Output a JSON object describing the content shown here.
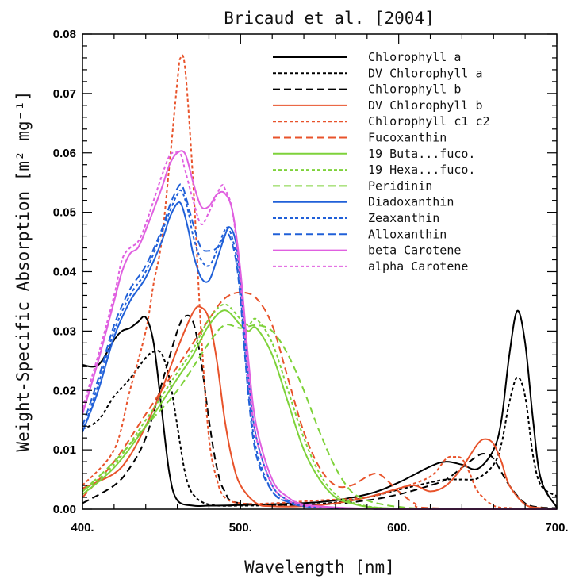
{
  "chart_data": {
    "type": "line",
    "title": "Bricaud et al. [2004]",
    "xlabel": "Wavelength [nm]",
    "ylabel": "Weight-Specific Absorption [m² mg⁻¹]",
    "xlim": [
      400,
      700
    ],
    "ylim": [
      0,
      0.08
    ],
    "x_ticks": [
      400,
      500,
      600,
      700
    ],
    "x_tick_labels": [
      "400.",
      "500.",
      "600.",
      "700."
    ],
    "y_ticks": [
      0,
      0.01,
      0.02,
      0.03,
      0.04,
      0.05,
      0.06,
      0.07,
      0.08
    ],
    "y_tick_labels": [
      "0.00",
      "0.01",
      "0.02",
      "0.03",
      "0.04",
      "0.05",
      "0.06",
      "0.07",
      "0.08"
    ],
    "legend_position": "top-right",
    "series": [
      {
        "name": "Chlorophyll a",
        "color": "#000000",
        "dash": "solid",
        "x": [
          400,
          410,
          420,
          425,
          430,
          435,
          440,
          445,
          450,
          455,
          460,
          470,
          480,
          500,
          550,
          580,
          600,
          620,
          630,
          640,
          650,
          660,
          665,
          670,
          675,
          680,
          685,
          690,
          700
        ],
        "y": [
          0.0243,
          0.0243,
          0.0285,
          0.03,
          0.0305,
          0.0315,
          0.0323,
          0.028,
          0.017,
          0.006,
          0.0015,
          0.0006,
          0.0006,
          0.0007,
          0.0012,
          0.0025,
          0.0045,
          0.0072,
          0.008,
          0.0075,
          0.0068,
          0.01,
          0.015,
          0.026,
          0.0334,
          0.028,
          0.015,
          0.005,
          0.0003
        ]
      },
      {
        "name": "DV Chlorophyll a",
        "color": "#000000",
        "dash": "short",
        "x": [
          400,
          410,
          420,
          430,
          440,
          445,
          450,
          455,
          460,
          465,
          470,
          480,
          500,
          550,
          580,
          600,
          620,
          630,
          640,
          650,
          660,
          665,
          670,
          675,
          680,
          685,
          690,
          700
        ],
        "y": [
          0.0135,
          0.015,
          0.019,
          0.022,
          0.0255,
          0.0265,
          0.0262,
          0.022,
          0.014,
          0.006,
          0.0025,
          0.0008,
          0.0006,
          0.0009,
          0.002,
          0.0033,
          0.0045,
          0.005,
          0.005,
          0.0052,
          0.0075,
          0.011,
          0.018,
          0.0222,
          0.019,
          0.009,
          0.004,
          0.0022
        ]
      },
      {
        "name": "Chlorophyll b",
        "color": "#000000",
        "dash": "long",
        "x": [
          400,
          420,
          430,
          440,
          450,
          460,
          465,
          470,
          475,
          480,
          485,
          490,
          500,
          550,
          580,
          600,
          620,
          630,
          640,
          650,
          655,
          660,
          670,
          680,
          690,
          700
        ],
        "y": [
          0.001,
          0.004,
          0.007,
          0.012,
          0.021,
          0.03,
          0.0325,
          0.0315,
          0.025,
          0.015,
          0.007,
          0.003,
          0.001,
          0.0008,
          0.0015,
          0.0025,
          0.004,
          0.005,
          0.007,
          0.009,
          0.0093,
          0.0085,
          0.004,
          0.001,
          0.0003,
          0.0002
        ]
      },
      {
        "name": "DV Chlorophyll b",
        "color": "#e8532b",
        "dash": "solid",
        "x": [
          400,
          420,
          430,
          440,
          450,
          460,
          470,
          475,
          480,
          485,
          490,
          495,
          500,
          510,
          520,
          540,
          560,
          580,
          600,
          610,
          620,
          630,
          640,
          650,
          655,
          660,
          665,
          670,
          680,
          690,
          700
        ],
        "y": [
          0.0035,
          0.006,
          0.009,
          0.014,
          0.02,
          0.027,
          0.0332,
          0.034,
          0.032,
          0.025,
          0.015,
          0.008,
          0.004,
          0.001,
          0.0005,
          0.0005,
          0.001,
          0.002,
          0.0035,
          0.004,
          0.003,
          0.004,
          0.007,
          0.011,
          0.0118,
          0.011,
          0.008,
          0.004,
          0.0008,
          0.0002,
          0.0001
        ]
      },
      {
        "name": "Chlorophyll c1 c2",
        "color": "#e8532b",
        "dash": "short",
        "x": [
          400,
          420,
          430,
          440,
          445,
          450,
          455,
          460,
          462,
          465,
          470,
          475,
          480,
          485,
          490,
          500,
          520,
          550,
          580,
          600,
          620,
          630,
          635,
          640,
          645,
          650,
          660,
          670,
          680,
          700
        ],
        "y": [
          0.004,
          0.01,
          0.02,
          0.03,
          0.038,
          0.045,
          0.058,
          0.072,
          0.076,
          0.074,
          0.055,
          0.03,
          0.012,
          0.005,
          0.002,
          0.001,
          0.001,
          0.0015,
          0.002,
          0.0035,
          0.0055,
          0.0085,
          0.0088,
          0.0085,
          0.006,
          0.003,
          0.0006,
          0.0002,
          0.0001,
          0.0
        ]
      },
      {
        "name": "Fucoxanthin",
        "color": "#e8532b",
        "dash": "long",
        "x": [
          400,
          420,
          440,
          460,
          480,
          490,
          500,
          510,
          520,
          530,
          540,
          550,
          560,
          570,
          580,
          585,
          590,
          600,
          610,
          620,
          700
        ],
        "y": [
          0.002,
          0.008,
          0.016,
          0.024,
          0.032,
          0.0355,
          0.0365,
          0.0355,
          0.031,
          0.022,
          0.013,
          0.007,
          0.004,
          0.004,
          0.0055,
          0.006,
          0.0055,
          0.003,
          0.001,
          0.0002,
          0.0
        ]
      },
      {
        "name": "19 Buta...fuco.",
        "color": "#7ed23a",
        "dash": "solid",
        "x": [
          400,
          420,
          440,
          460,
          470,
          480,
          490,
          500,
          505,
          510,
          520,
          530,
          540,
          550,
          560,
          570,
          580,
          590,
          600,
          620,
          700
        ],
        "y": [
          0.0025,
          0.007,
          0.014,
          0.022,
          0.026,
          0.031,
          0.0335,
          0.031,
          0.03,
          0.0305,
          0.026,
          0.018,
          0.01,
          0.005,
          0.002,
          0.001,
          0.0004,
          0.0002,
          0.0001,
          0.0,
          0.0
        ]
      },
      {
        "name": "19 Hexa...fuco.",
        "color": "#7ed23a",
        "dash": "short",
        "x": [
          400,
          420,
          440,
          460,
          470,
          480,
          490,
          500,
          505,
          510,
          520,
          530,
          540,
          550,
          560,
          570,
          580,
          590,
          600,
          620,
          700
        ],
        "y": [
          0.003,
          0.0075,
          0.015,
          0.023,
          0.027,
          0.032,
          0.0345,
          0.032,
          0.031,
          0.032,
          0.028,
          0.02,
          0.012,
          0.006,
          0.0025,
          0.0012,
          0.0005,
          0.0002,
          0.0001,
          0.0,
          0.0
        ]
      },
      {
        "name": "Peridinin",
        "color": "#7ed23a",
        "dash": "long",
        "x": [
          400,
          420,
          440,
          460,
          480,
          490,
          500,
          510,
          520,
          530,
          540,
          550,
          560,
          570,
          580,
          590,
          600,
          620,
          700
        ],
        "y": [
          0.003,
          0.008,
          0.014,
          0.02,
          0.028,
          0.031,
          0.0305,
          0.031,
          0.03,
          0.026,
          0.02,
          0.013,
          0.007,
          0.003,
          0.0015,
          0.0008,
          0.0004,
          0.0001,
          0.0
        ]
      },
      {
        "name": "Diadoxanthin",
        "color": "#2060d8",
        "dash": "solid",
        "x": [
          400,
          410,
          420,
          430,
          440,
          450,
          455,
          460,
          463,
          467,
          470,
          475,
          480,
          485,
          490,
          493,
          497,
          500,
          505,
          510,
          520,
          530,
          540,
          560,
          580,
          600,
          700
        ],
        "y": [
          0.013,
          0.02,
          0.029,
          0.035,
          0.039,
          0.045,
          0.049,
          0.0515,
          0.051,
          0.047,
          0.043,
          0.039,
          0.0385,
          0.042,
          0.046,
          0.0475,
          0.045,
          0.038,
          0.022,
          0.012,
          0.004,
          0.0015,
          0.0006,
          0.0002,
          0.0001,
          0.0,
          0.0
        ]
      },
      {
        "name": "Zeaxanthin",
        "color": "#2060d8",
        "dash": "short",
        "x": [
          400,
          410,
          420,
          430,
          440,
          450,
          455,
          460,
          463,
          467,
          470,
          475,
          480,
          485,
          490,
          493,
          497,
          500,
          505,
          510,
          520,
          530,
          540,
          560,
          580,
          600,
          700
        ],
        "y": [
          0.013,
          0.021,
          0.03,
          0.036,
          0.04,
          0.0465,
          0.05,
          0.053,
          0.0535,
          0.05,
          0.046,
          0.042,
          0.041,
          0.0435,
          0.047,
          0.047,
          0.043,
          0.036,
          0.02,
          0.01,
          0.003,
          0.0012,
          0.0005,
          0.0002,
          0.0001,
          0.0,
          0.0
        ]
      },
      {
        "name": "Alloxanthin",
        "color": "#2060d8",
        "dash": "long",
        "x": [
          400,
          410,
          420,
          430,
          440,
          450,
          455,
          460,
          463,
          467,
          470,
          475,
          480,
          485,
          490,
          493,
          497,
          500,
          505,
          510,
          520,
          530,
          540,
          560,
          580,
          600,
          700
        ],
        "y": [
          0.014,
          0.022,
          0.031,
          0.037,
          0.041,
          0.047,
          0.051,
          0.054,
          0.0545,
          0.051,
          0.048,
          0.044,
          0.0435,
          0.044,
          0.046,
          0.046,
          0.042,
          0.035,
          0.019,
          0.009,
          0.003,
          0.0012,
          0.0005,
          0.0002,
          0.0001,
          0.0,
          0.0
        ]
      },
      {
        "name": "beta Carotene",
        "color": "#e060e0",
        "dash": "solid",
        "x": [
          400,
          410,
          420,
          425,
          430,
          435,
          440,
          450,
          455,
          460,
          465,
          470,
          475,
          480,
          485,
          490,
          495,
          500,
          505,
          510,
          520,
          530,
          540,
          560,
          580,
          600,
          700
        ],
        "y": [
          0.016,
          0.025,
          0.035,
          0.04,
          0.043,
          0.044,
          0.047,
          0.054,
          0.058,
          0.06,
          0.0598,
          0.055,
          0.051,
          0.051,
          0.053,
          0.0532,
          0.05,
          0.04,
          0.025,
          0.014,
          0.005,
          0.002,
          0.0008,
          0.0003,
          0.0001,
          0.0,
          0.0
        ]
      },
      {
        "name": "alpha Carotene",
        "color": "#e060e0",
        "dash": "short",
        "x": [
          400,
          410,
          420,
          425,
          430,
          435,
          440,
          450,
          455,
          458,
          462,
          465,
          470,
          475,
          480,
          485,
          488,
          490,
          495,
          500,
          505,
          510,
          520,
          530,
          540,
          560,
          580,
          600,
          700
        ],
        "y": [
          0.017,
          0.026,
          0.036,
          0.042,
          0.044,
          0.045,
          0.048,
          0.056,
          0.0595,
          0.06,
          0.0598,
          0.057,
          0.052,
          0.048,
          0.05,
          0.053,
          0.0545,
          0.054,
          0.05,
          0.038,
          0.022,
          0.012,
          0.004,
          0.0015,
          0.0006,
          0.0002,
          0.0001,
          0.0,
          0.0
        ]
      }
    ]
  }
}
